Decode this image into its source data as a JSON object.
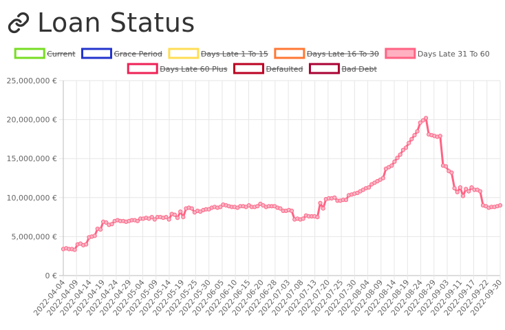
{
  "page": {
    "title": "Loan Status"
  },
  "chart_data": {
    "type": "line",
    "title": "",
    "xlabel": "",
    "ylabel": "",
    "ylim": [
      0,
      25000000
    ],
    "y_ticks": [
      "0 €",
      "5,000,000 €",
      "10,000,000 €",
      "15,000,000 €",
      "20,000,000 €",
      "25,000,000 €"
    ],
    "x_tick_labels": [
      "2022-04-04",
      "2022-04-09",
      "2022-04-14",
      "2022-04-19",
      "2022-04-24",
      "2022-04-29",
      "2022-05-04",
      "2022-05-09",
      "2022-05-14",
      "2022-05-19",
      "2022-05-25",
      "2022-05-30",
      "2022-06-05",
      "2022-06-10",
      "2022-06-15",
      "2022-06-20",
      "2022-06-28",
      "2022-07-03",
      "2022-07-08",
      "2022-07-13",
      "2022-07-20",
      "2022-07-25",
      "2022-07-30",
      "2022-08-04",
      "2022-08-09",
      "2022-08-14",
      "2022-08-19",
      "2022-08-24",
      "2022-08-29",
      "2022-09-03",
      "2022-09-11",
      "2022-09-17",
      "2022-09-22",
      "2022-09-30"
    ],
    "grid": true,
    "legend_position": "top",
    "legend": [
      {
        "name": "Current",
        "color": "#77dd22",
        "hidden": true
      },
      {
        "name": "Grace Period",
        "color": "#2233cc",
        "hidden": true
      },
      {
        "name": "Days Late 1 To 15",
        "color": "#ffdd55",
        "hidden": true
      },
      {
        "name": "Days Late 16 To 30",
        "color": "#ff7733",
        "hidden": true
      },
      {
        "name": "Days Late 31 To 60",
        "color": "#ff6384",
        "hidden": false
      },
      {
        "name": "Days Late 60 Plus",
        "color": "#ee2255",
        "hidden": true
      },
      {
        "name": "Defaulted",
        "color": "#bb0022",
        "hidden": true
      },
      {
        "name": "Bad Debt",
        "color": "#aa0033",
        "hidden": true
      }
    ],
    "series": [
      {
        "name": "Days Late 31 To 60",
        "color": "#ff6384",
        "values": [
          3400000,
          3500000,
          3400000,
          3400000,
          3300000,
          4000000,
          4100000,
          3900000,
          4000000,
          4900000,
          5000000,
          5100000,
          6000000,
          5900000,
          6900000,
          6800000,
          6500000,
          6600000,
          7000000,
          7100000,
          7000000,
          7000000,
          6900000,
          7000000,
          7100000,
          7100000,
          7000000,
          7300000,
          7300000,
          7400000,
          7300000,
          7500000,
          7200000,
          7500000,
          7500000,
          7400000,
          7500000,
          7200000,
          7900000,
          7800000,
          7400000,
          8200000,
          7500000,
          8600000,
          8700000,
          8600000,
          8100000,
          8300000,
          8200000,
          8400000,
          8500000,
          8500000,
          8700000,
          8800000,
          8700000,
          8800000,
          9100000,
          9000000,
          8900000,
          8800000,
          8800000,
          8700000,
          8900000,
          8900000,
          8800000,
          9000000,
          8800000,
          8800000,
          8900000,
          9200000,
          9000000,
          8800000,
          8900000,
          8900000,
          8900000,
          8700000,
          8600000,
          8300000,
          8300000,
          8400000,
          8300000,
          7200000,
          7300000,
          7200000,
          7300000,
          7700000,
          7600000,
          7600000,
          7600000,
          7500000,
          9300000,
          8600000,
          9800000,
          9900000,
          9900000,
          10000000,
          9600000,
          9600000,
          9700000,
          9700000,
          10300000,
          10400000,
          10500000,
          10600000,
          10800000,
          11000000,
          11200000,
          11300000,
          11700000,
          11900000,
          12100000,
          12300000,
          12500000,
          13700000,
          13900000,
          14100000,
          14600000,
          15100000,
          15500000,
          16100000,
          16400000,
          17000000,
          17500000,
          18000000,
          18500000,
          19600000,
          19900000,
          20200000,
          18100000,
          18000000,
          17900000,
          17800000,
          17900000,
          14100000,
          14000000,
          13400000,
          13200000,
          11200000,
          10700000,
          11300000,
          10200000,
          11100000,
          10800000,
          11300000,
          11000000,
          11000000,
          10800000,
          9000000,
          8900000,
          8700000,
          8800000,
          8800000,
          8900000,
          9000000
        ]
      }
    ]
  }
}
